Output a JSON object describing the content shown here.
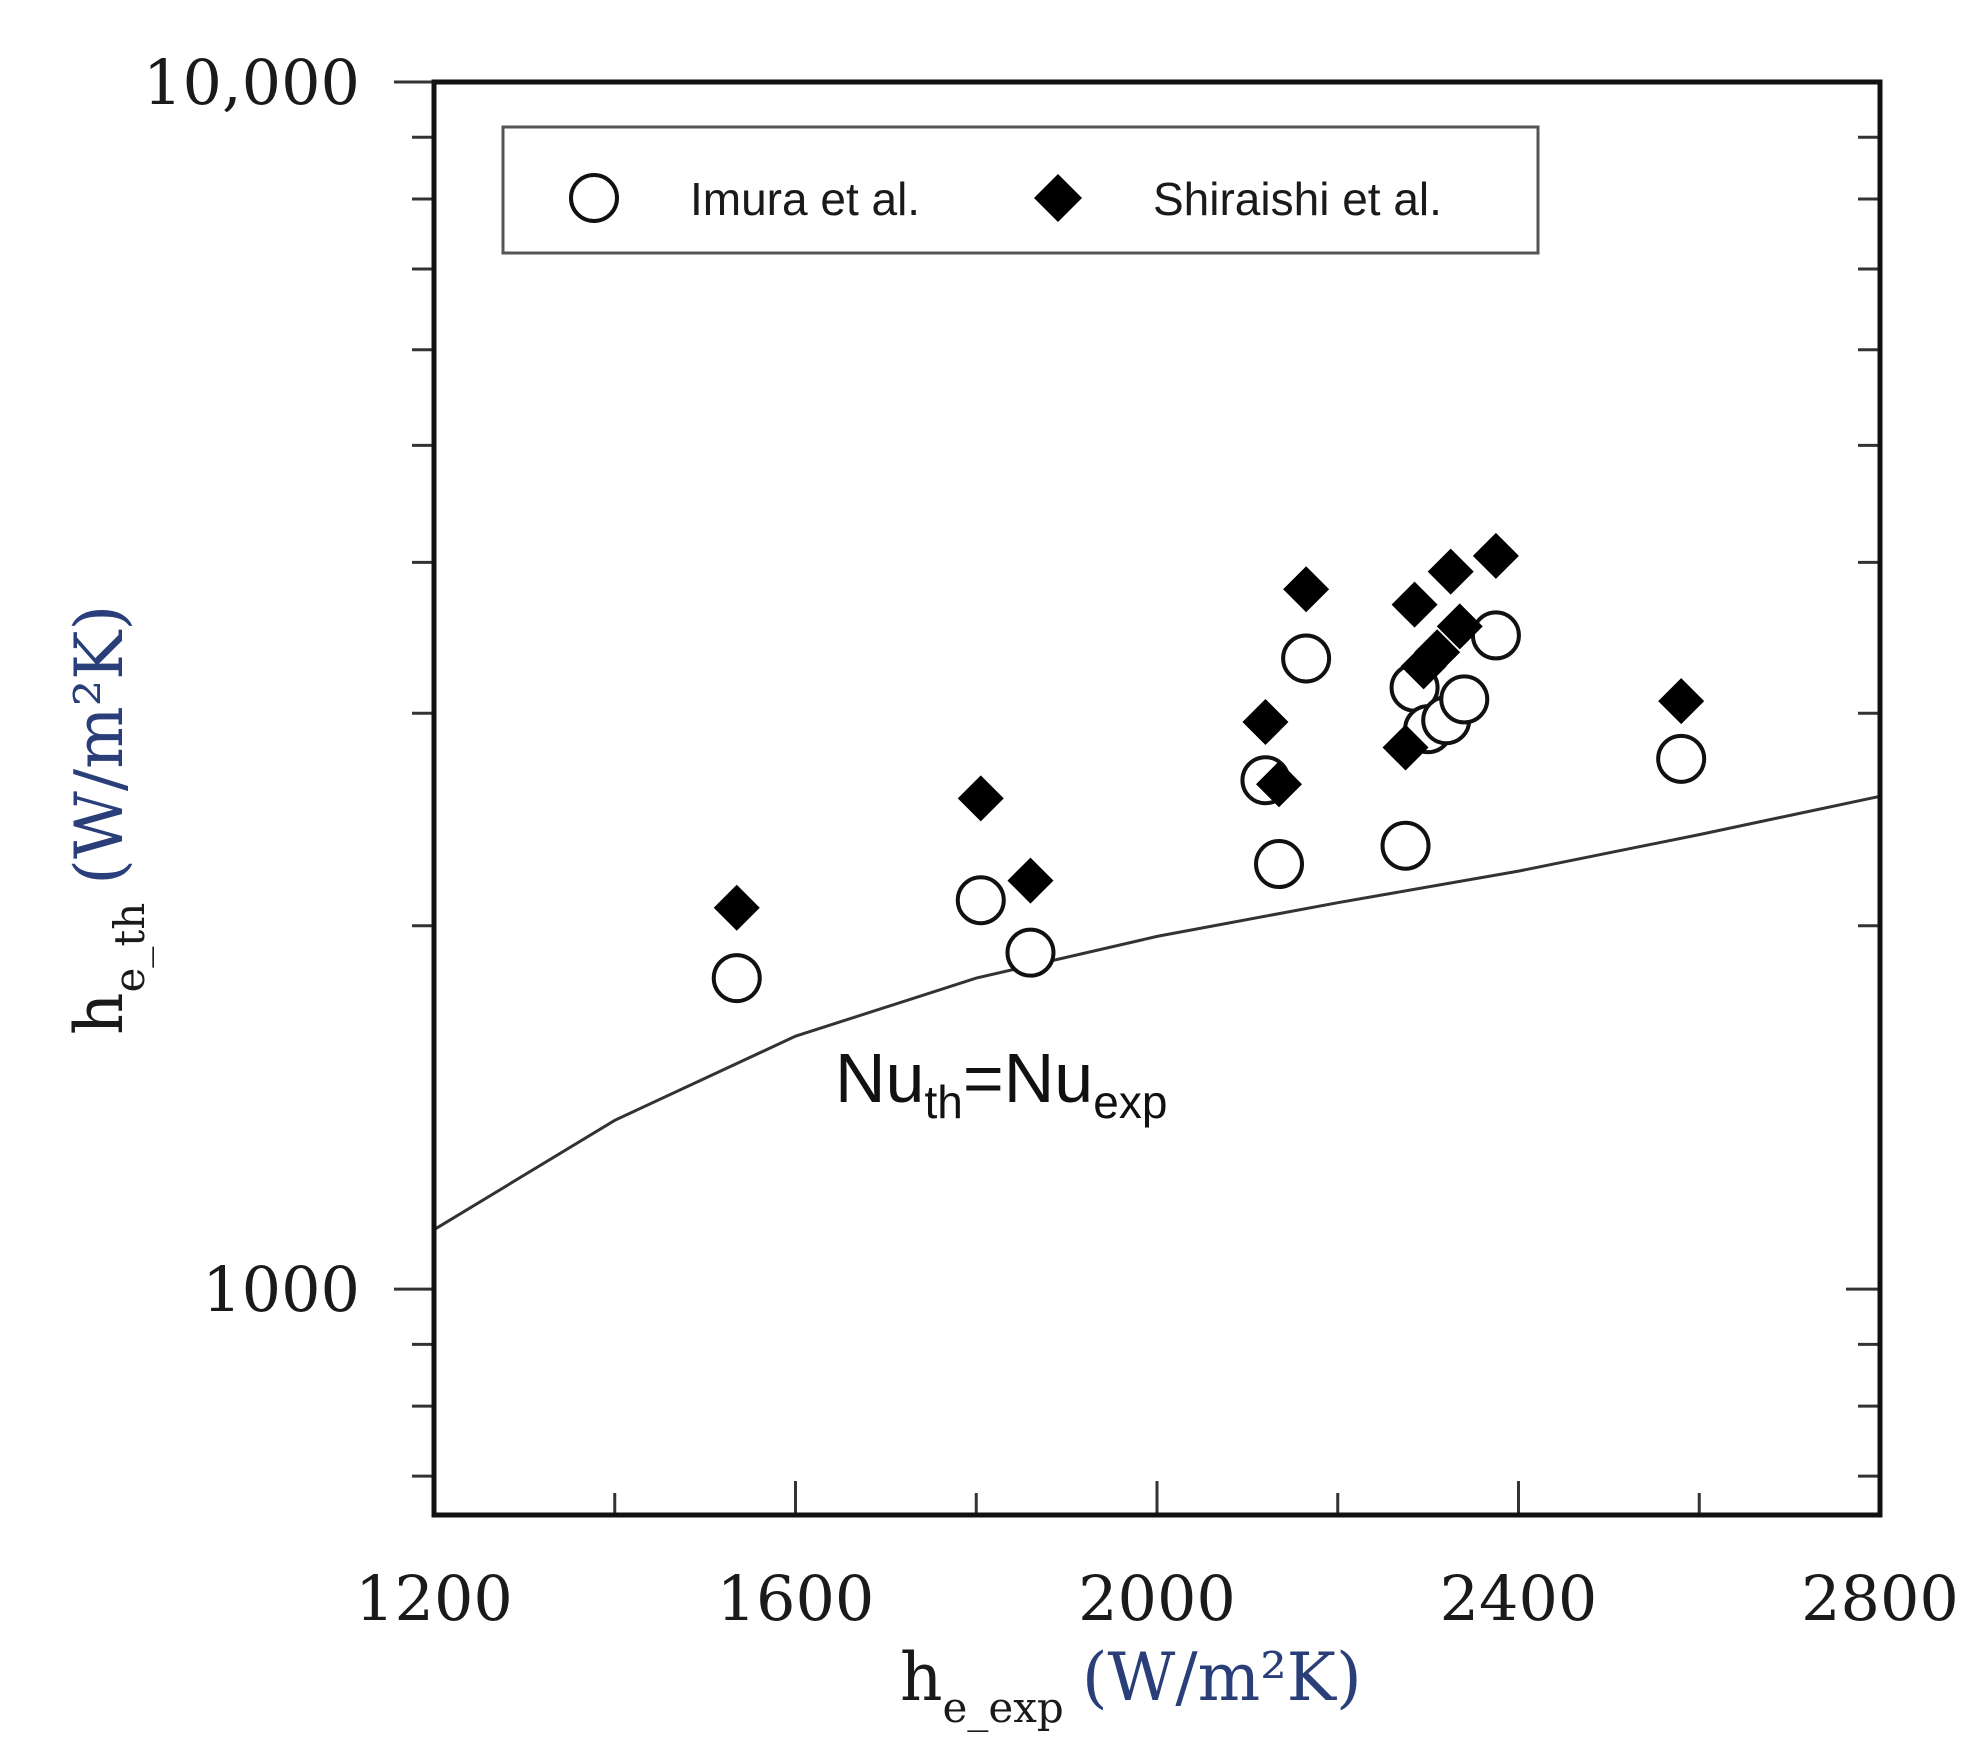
{
  "chart_data": {
    "type": "scatter",
    "x_scale": "linear",
    "y_scale": "log",
    "xlim": [
      1200,
      2800
    ],
    "ylim": [
      650,
      10000
    ],
    "x_ticks": [
      1200,
      1600,
      2000,
      2400,
      2800
    ],
    "x_tick_labels": [
      "1200",
      "1600",
      "2000",
      "2400",
      "2800"
    ],
    "y_tick_labels": [
      "1000",
      "10,000"
    ],
    "xlabel": {
      "main": "h",
      "sub": "e_exp",
      "unit": "(W/m²K)"
    },
    "ylabel": {
      "main": "h",
      "sub": "e_th",
      "unit": "(W/m²K)"
    },
    "legend": [
      {
        "label": "Imura et al.",
        "marker": "open-circle"
      },
      {
        "label": "Shiraishi et al.",
        "marker": "filled-diamond"
      }
    ],
    "annotation": {
      "main1": "Nu",
      "sub1": "th",
      "eq": "=Nu",
      "sub2": "exp"
    },
    "series": [
      {
        "name": "Imura et al.",
        "marker": "open-circle",
        "points": [
          [
            1535,
            1810
          ],
          [
            1805,
            2100
          ],
          [
            1860,
            1900
          ],
          [
            2120,
            2640
          ],
          [
            2135,
            2250
          ],
          [
            2165,
            3330
          ],
          [
            2275,
            2330
          ],
          [
            2285,
            3150
          ],
          [
            2300,
            2910
          ],
          [
            2320,
            2960
          ],
          [
            2340,
            3080
          ],
          [
            2375,
            3480
          ],
          [
            2580,
            2750
          ]
        ]
      },
      {
        "name": "Shiraishi et al.",
        "marker": "filled-diamond",
        "points": [
          [
            1535,
            2070
          ],
          [
            1805,
            2550
          ],
          [
            1860,
            2180
          ],
          [
            2120,
            2950
          ],
          [
            2135,
            2620
          ],
          [
            2165,
            3800
          ],
          [
            2275,
            2810
          ],
          [
            2285,
            3690
          ],
          [
            2295,
            3280
          ],
          [
            2310,
            3370
          ],
          [
            2325,
            3930
          ],
          [
            2335,
            3540
          ],
          [
            2375,
            4050
          ],
          [
            2580,
            3070
          ]
        ]
      },
      {
        "name": "Nu_th=Nu_exp",
        "type": "line",
        "x": [
          1200,
          1400,
          1600,
          1800,
          2000,
          2200,
          2400,
          2600,
          2800
        ],
        "y": [
          1120,
          1380,
          1620,
          1810,
          1960,
          2090,
          2220,
          2380,
          2560
        ]
      }
    ]
  }
}
